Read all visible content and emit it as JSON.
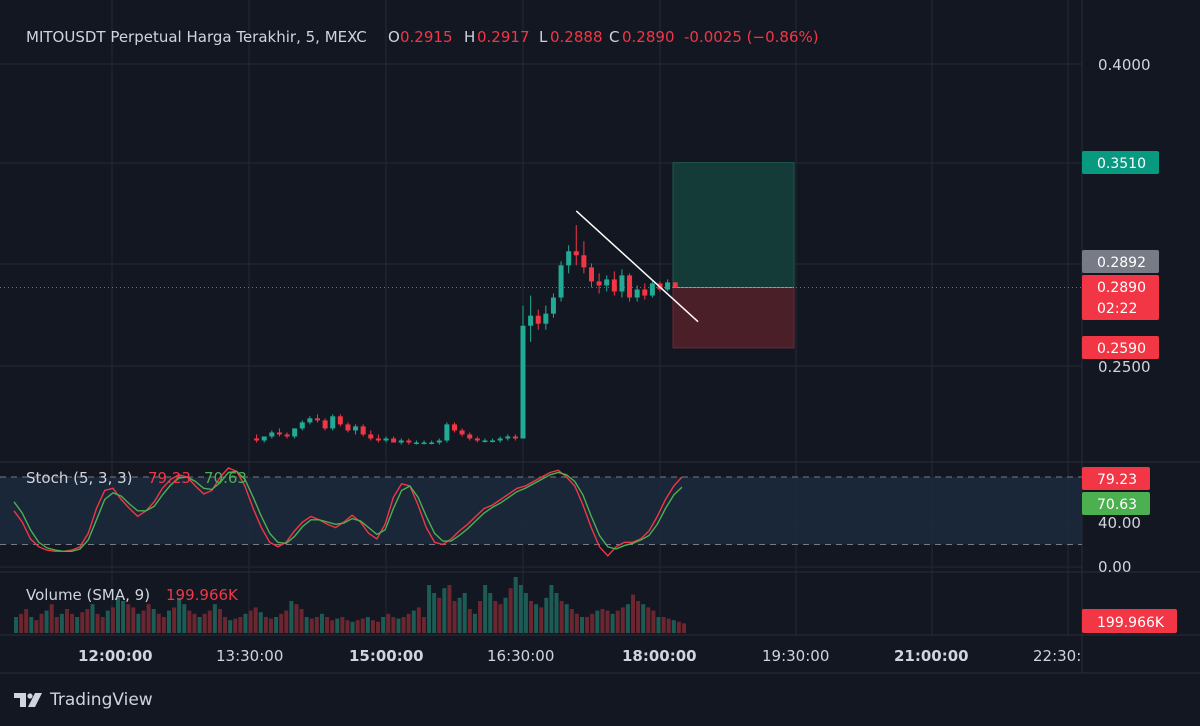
{
  "header": {
    "symbol": "MITOUSDT Perpetual Harga Terakhir, 5, MEXC",
    "o_label": "O",
    "o_value": "0.2915",
    "h_label": "H",
    "h_value": "0.2917",
    "l_label": "L",
    "l_value": "0.2888",
    "c_label": "C",
    "c_value": "0.2890",
    "change": "-0.0025 (−0.86%)"
  },
  "colors": {
    "background": "#131722",
    "grid": "#242832",
    "text": "#d1d4dc",
    "up": "#22ab94",
    "down": "#f23645",
    "profit_zone": "#143b37",
    "loss_zone": "#4a1f28",
    "price_tag": "#f23645",
    "target_tag": "#089981",
    "neutral_tag": "#787b86",
    "stoch_k": "#f23645",
    "stoch_d": "#4caf50",
    "trendline": "#ffffff"
  },
  "price_axis": {
    "labels": [
      "0.4000",
      "0.2500"
    ]
  },
  "price_tags": {
    "target": "0.3510",
    "crosshair": "0.2892",
    "last": "0.2890",
    "countdown": "02:22",
    "stop": "0.2590"
  },
  "stoch": {
    "title": "Stoch (5, 3, 3)",
    "k_value": "79.23",
    "d_value": "70.63",
    "axis_labels": [
      "40.00",
      "0.00"
    ]
  },
  "volume": {
    "title": "Volume (SMA, 9)",
    "value": "199.966K"
  },
  "time_axis": {
    "labels": [
      "12:00:00",
      "13:30:00",
      "15:00:00",
      "16:30:00",
      "18:00:00",
      "19:30:00",
      "21:00:00",
      "22:30:"
    ]
  },
  "footer": {
    "brand": "TradingView",
    "logo_icon": "tradingview-logo-icon"
  },
  "chart_data": [
    {
      "type": "candlestick",
      "interval": "5m",
      "y_axis_visible_ticks": [
        0.4,
        0.25
      ],
      "key_levels": {
        "take_profit": 0.351,
        "entry": 0.289,
        "stop_loss": 0.259
      },
      "ohlc_approx": [
        [
          13.35,
          0.214,
          0.216,
          0.212,
          0.213
        ],
        [
          13.4,
          0.213,
          0.215,
          0.212,
          0.215
        ],
        [
          13.45,
          0.215,
          0.218,
          0.214,
          0.217
        ],
        [
          13.5,
          0.217,
          0.219,
          0.215,
          0.216
        ],
        [
          13.55,
          0.216,
          0.217,
          0.214,
          0.215
        ],
        [
          14.0,
          0.215,
          0.219,
          0.214,
          0.219
        ],
        [
          14.05,
          0.219,
          0.223,
          0.218,
          0.222
        ],
        [
          14.1,
          0.222,
          0.225,
          0.221,
          0.224
        ],
        [
          14.15,
          0.224,
          0.226,
          0.222,
          0.223
        ],
        [
          14.2,
          0.223,
          0.224,
          0.218,
          0.219
        ],
        [
          14.25,
          0.219,
          0.226,
          0.218,
          0.225
        ],
        [
          14.3,
          0.225,
          0.226,
          0.22,
          0.221
        ],
        [
          14.35,
          0.221,
          0.222,
          0.217,
          0.218
        ],
        [
          14.4,
          0.218,
          0.221,
          0.216,
          0.22
        ],
        [
          14.45,
          0.22,
          0.221,
          0.215,
          0.216
        ],
        [
          14.5,
          0.216,
          0.218,
          0.213,
          0.214
        ],
        [
          14.55,
          0.214,
          0.216,
          0.212,
          0.213
        ],
        [
          15.0,
          0.213,
          0.215,
          0.212,
          0.214
        ],
        [
          15.05,
          0.214,
          0.215,
          0.212,
          0.212
        ],
        [
          15.1,
          0.212,
          0.214,
          0.211,
          0.213
        ],
        [
          15.15,
          0.213,
          0.214,
          0.211,
          0.212
        ],
        [
          15.2,
          0.212,
          0.213,
          0.211,
          0.212
        ],
        [
          15.25,
          0.212,
          0.213,
          0.211,
          0.212
        ],
        [
          15.3,
          0.212,
          0.213,
          0.211,
          0.212
        ],
        [
          15.35,
          0.212,
          0.214,
          0.211,
          0.213
        ],
        [
          15.4,
          0.213,
          0.222,
          0.212,
          0.221
        ],
        [
          15.45,
          0.221,
          0.222,
          0.217,
          0.218
        ],
        [
          15.5,
          0.218,
          0.219,
          0.215,
          0.216
        ],
        [
          15.55,
          0.216,
          0.217,
          0.213,
          0.214
        ],
        [
          16.0,
          0.214,
          0.215,
          0.212,
          0.213
        ],
        [
          16.05,
          0.213,
          0.214,
          0.212,
          0.213
        ],
        [
          16.1,
          0.213,
          0.214,
          0.212,
          0.213
        ],
        [
          16.15,
          0.213,
          0.215,
          0.212,
          0.214
        ],
        [
          16.2,
          0.214,
          0.216,
          0.213,
          0.215
        ],
        [
          16.25,
          0.215,
          0.216,
          0.213,
          0.214
        ],
        [
          16.3,
          0.214,
          0.28,
          0.214,
          0.27
        ],
        [
          16.35,
          0.27,
          0.285,
          0.262,
          0.275
        ],
        [
          16.4,
          0.275,
          0.278,
          0.268,
          0.271
        ],
        [
          16.45,
          0.271,
          0.28,
          0.268,
          0.276
        ],
        [
          16.5,
          0.276,
          0.286,
          0.274,
          0.284
        ],
        [
          16.55,
          0.284,
          0.302,
          0.282,
          0.3
        ],
        [
          17.0,
          0.3,
          0.31,
          0.296,
          0.307
        ],
        [
          17.05,
          0.307,
          0.32,
          0.3,
          0.305
        ],
        [
          17.1,
          0.305,
          0.312,
          0.296,
          0.299
        ],
        [
          17.15,
          0.299,
          0.301,
          0.289,
          0.292
        ],
        [
          17.2,
          0.292,
          0.296,
          0.286,
          0.29
        ],
        [
          17.25,
          0.29,
          0.295,
          0.287,
          0.293
        ],
        [
          17.3,
          0.293,
          0.297,
          0.285,
          0.287
        ],
        [
          17.35,
          0.287,
          0.298,
          0.284,
          0.295
        ],
        [
          17.4,
          0.295,
          0.296,
          0.282,
          0.284
        ],
        [
          17.45,
          0.284,
          0.29,
          0.282,
          0.288
        ],
        [
          17.5,
          0.288,
          0.291,
          0.283,
          0.285
        ],
        [
          17.55,
          0.285,
          0.292,
          0.284,
          0.291
        ],
        [
          18.0,
          0.291,
          0.292,
          0.287,
          0.288
        ],
        [
          18.05,
          0.288,
          0.293,
          0.287,
          0.2915
        ],
        [
          18.1,
          0.2915,
          0.2917,
          0.2888,
          0.289
        ]
      ],
      "trendline": {
        "from": [
          17.05,
          0.327
        ],
        "to": [
          18.25,
          0.272
        ]
      }
    },
    {
      "type": "line",
      "title": "Stoch (5, 3, 3)",
      "ylim": [
        0,
        100
      ],
      "bands": [
        20,
        80
      ],
      "series": [
        {
          "name": "%K",
          "values": [
            50,
            40,
            25,
            18,
            15,
            14,
            14,
            15,
            18,
            30,
            52,
            68,
            70,
            60,
            52,
            45,
            50,
            58,
            70,
            78,
            82,
            80,
            72,
            65,
            68,
            80,
            88,
            85,
            72,
            52,
            35,
            22,
            18,
            22,
            32,
            40,
            45,
            42,
            38,
            35,
            40,
            46,
            40,
            30,
            25,
            38,
            62,
            74,
            72,
            55,
            35,
            22,
            20,
            25,
            32,
            38,
            45,
            52,
            55,
            60,
            65,
            70,
            72,
            76,
            80,
            84,
            86,
            80,
            72,
            55,
            35,
            18,
            10,
            18,
            22,
            22,
            25,
            32,
            45,
            60,
            72,
            80
          ]
        },
        {
          "name": "%D",
          "values": [
            58,
            48,
            33,
            22,
            17,
            15,
            14,
            14,
            16,
            24,
            42,
            60,
            66,
            63,
            56,
            50,
            50,
            54,
            64,
            73,
            79,
            80,
            76,
            70,
            69,
            75,
            84,
            85,
            78,
            62,
            45,
            30,
            22,
            21,
            27,
            36,
            42,
            42,
            40,
            38,
            39,
            43,
            41,
            35,
            29,
            33,
            52,
            68,
            72,
            62,
            45,
            30,
            23,
            23,
            28,
            34,
            41,
            48,
            53,
            57,
            62,
            67,
            70,
            74,
            78,
            82,
            84,
            82,
            76,
            64,
            45,
            28,
            18,
            16,
            19,
            21,
            24,
            28,
            38,
            52,
            64,
            71
          ]
        }
      ],
      "last": {
        "%K": 79.23,
        "%D": 70.63
      }
    },
    {
      "type": "bar",
      "title": "Volume (SMA, 9)",
      "sma_last": "199.966K",
      "values": [
        0.1,
        0.12,
        0.15,
        0.1,
        0.08,
        0.12,
        0.14,
        0.18,
        0.1,
        0.12,
        0.15,
        0.12,
        0.1,
        0.13,
        0.15,
        0.18,
        0.12,
        0.1,
        0.14,
        0.16,
        0.22,
        0.2,
        0.18,
        0.16,
        0.12,
        0.14,
        0.18,
        0.15,
        0.12,
        0.1,
        0.14,
        0.16,
        0.22,
        0.18,
        0.14,
        0.12,
        0.1,
        0.12,
        0.14,
        0.18,
        0.15,
        0.1,
        0.08,
        0.09,
        0.1,
        0.12,
        0.14,
        0.16,
        0.13,
        0.1,
        0.09,
        0.1,
        0.12,
        0.14,
        0.2,
        0.18,
        0.15,
        0.1,
        0.09,
        0.1,
        0.12,
        0.1,
        0.08,
        0.09,
        0.1,
        0.08,
        0.07,
        0.08,
        0.09,
        0.1,
        0.08,
        0.07,
        0.1,
        0.12,
        0.1,
        0.09,
        0.1,
        0.12,
        0.14,
        0.16,
        0.1,
        0.3,
        0.25,
        0.22,
        0.28,
        0.3,
        0.2,
        0.22,
        0.25,
        0.15,
        0.12,
        0.2,
        0.3,
        0.25,
        0.2,
        0.18,
        0.22,
        0.28,
        0.35,
        0.3,
        0.25,
        0.2,
        0.18,
        0.16,
        0.22,
        0.3,
        0.25,
        0.2,
        0.18,
        0.15,
        0.12,
        0.1,
        0.1,
        0.12,
        0.14,
        0.15,
        0.14,
        0.12,
        0.14,
        0.16,
        0.18,
        0.24,
        0.2,
        0.18,
        0.16,
        0.14,
        0.1,
        0.1,
        0.09,
        0.08,
        0.07,
        0.06
      ]
    }
  ]
}
